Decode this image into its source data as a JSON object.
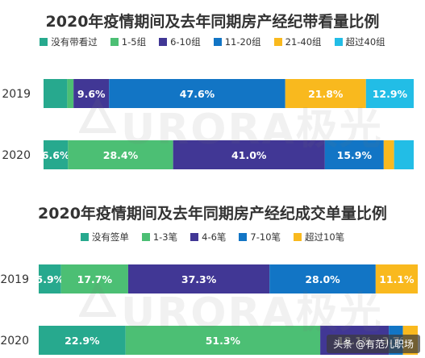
{
  "chart_data": [
    {
      "type": "bar",
      "orientation": "horizontal-stacked-100",
      "title": "2020年疫情期间及去年同期房产经纪带看量比例",
      "categories": [
        "2019",
        "2020"
      ],
      "series": [
        {
          "name": "没有带看过",
          "color": "#27a98e",
          "values": [
            6.4,
            6.6
          ],
          "labels": [
            "",
            "6.6%"
          ]
        },
        {
          "name": "1-5组",
          "color": "#4cbf74",
          "values": [
            1.7,
            28.4
          ],
          "labels": [
            "",
            "28.4%"
          ]
        },
        {
          "name": "6-10组",
          "color": "#413795",
          "values": [
            9.6,
            41.0
          ],
          "labels": [
            "9.6%",
            "41.0%"
          ]
        },
        {
          "name": "11-20组",
          "color": "#1275c5",
          "values": [
            47.6,
            15.9
          ],
          "labels": [
            "47.6%",
            "15.9%"
          ]
        },
        {
          "name": "21-40组",
          "color": "#f9b91e",
          "values": [
            21.8,
            2.8
          ],
          "labels": [
            "21.8%",
            ""
          ]
        },
        {
          "name": "超过40组",
          "color": "#22bde6",
          "values": [
            12.9,
            5.3
          ],
          "labels": [
            "12.9%",
            ""
          ]
        }
      ]
    },
    {
      "type": "bar",
      "orientation": "horizontal-stacked-100",
      "title": "2020年疫情期间及去年同期房产经纪成交单量比例",
      "categories": [
        "2019",
        "2020"
      ],
      "series": [
        {
          "name": "没有签单",
          "color": "#27a98e",
          "values": [
            5.9,
            22.9
          ],
          "labels": [
            "5.9%",
            "22.9%"
          ]
        },
        {
          "name": "1-3笔",
          "color": "#4cbf74",
          "values": [
            17.7,
            51.3
          ],
          "labels": [
            "17.7%",
            "51.3%"
          ]
        },
        {
          "name": "4-6笔",
          "color": "#413795",
          "values": [
            37.3,
            18.1
          ],
          "labels": [
            "37.3%",
            "18.1%"
          ]
        },
        {
          "name": "7-10笔",
          "color": "#1275c5",
          "values": [
            28.0,
            3.7
          ],
          "labels": [
            "28.0%",
            "3.7%"
          ]
        },
        {
          "name": "超过10笔",
          "color": "#f9b91e",
          "values": [
            11.1,
            3.9
          ],
          "labels": [
            "11.1%",
            ""
          ]
        }
      ]
    }
  ],
  "watermark": {
    "text": "URORA极光"
  },
  "source_badge": {
    "text": "头条 @有范儿职场"
  }
}
